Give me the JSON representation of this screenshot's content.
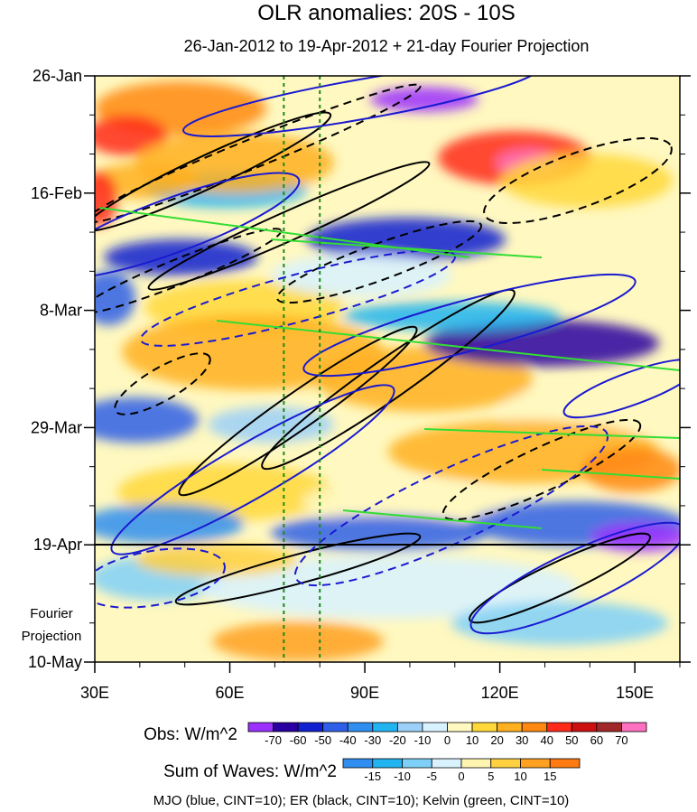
{
  "chart_data": {
    "type": "heatmap",
    "title": "OLR anomalies: 20S - 10S",
    "subtitle": "26-Jan-2012 to 19-Apr-2012 + 21-day Fourier Projection",
    "xlabel": "",
    "ylabel": "",
    "xlim": [
      30,
      160
    ],
    "y_dates": [
      "26-Jan",
      "16-Feb",
      "8-Mar",
      "29-Mar",
      "19-Apr",
      "10-May"
    ],
    "x_ticks": [
      "30E",
      "60E",
      "90E",
      "120E",
      "150E"
    ],
    "x_tick_values": [
      30,
      60,
      90,
      120,
      150
    ],
    "projection_start": "19-Apr",
    "projection_label_line1": "Fourier",
    "projection_label_line2": "Projection",
    "reference_longitudes": [
      72,
      80
    ],
    "obs_colorbar": {
      "label": "Obs: W/m^2",
      "levels": [
        -70,
        -60,
        -50,
        -40,
        -30,
        -20,
        -10,
        0,
        10,
        20,
        30,
        40,
        50,
        60,
        70
      ],
      "colors": [
        "#9b30ff",
        "#2a00a0",
        "#1020d0",
        "#2f5fe8",
        "#2f8ef0",
        "#22b4f0",
        "#9cd0f8",
        "#d8f2ff",
        "#fff8c0",
        "#ffd83a",
        "#ffb020",
        "#ff8810",
        "#ff2a1a",
        "#cc1010",
        "#a02828",
        "#ff70c0"
      ]
    },
    "waves_colorbar": {
      "label": "Sum of Waves: W/m^2",
      "levels": [
        -15,
        -10,
        -5,
        0,
        5,
        10,
        15
      ],
      "colors": [
        "#2f8ef0",
        "#22b4f0",
        "#7fd0f8",
        "#d8f2ff",
        "#fff4b0",
        "#ffd040",
        "#ffa020",
        "#ff7a10"
      ]
    },
    "footer": "MJO (blue, CINT=10); ER (black, CINT=10); Kelvin (green, CINT=10)",
    "contour_colors": {
      "mjo": "#1a1ad0",
      "er": "#000000",
      "kelvin": "#33dd33"
    }
  }
}
